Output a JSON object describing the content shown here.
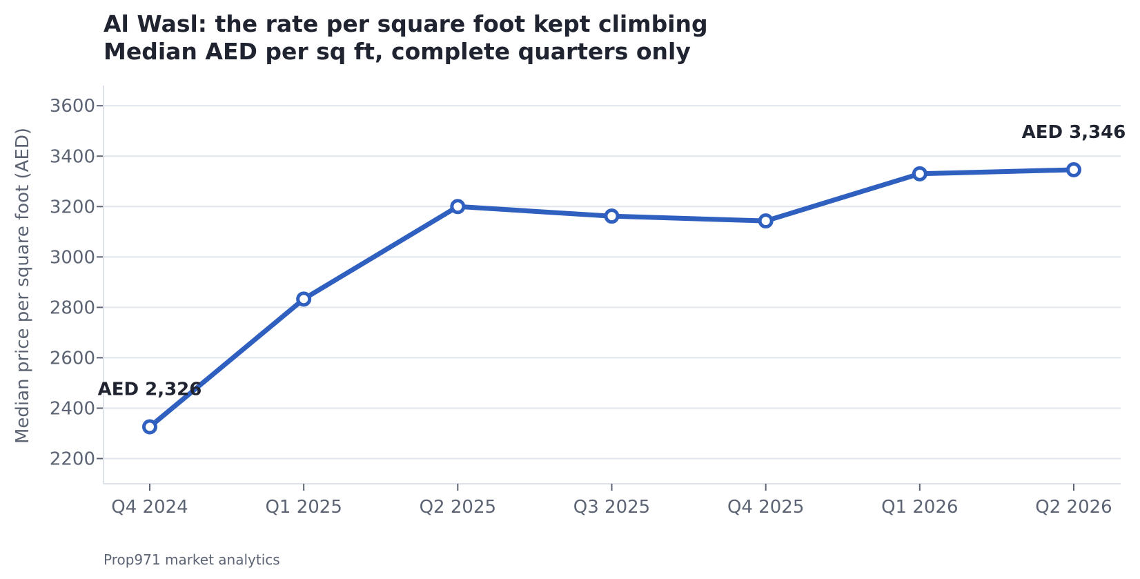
{
  "chart_data": {
    "type": "line",
    "title": "Al Wasl: the rate per square foot kept climbing",
    "subtitle": "Median AED per sq ft, complete quarters only",
    "xlabel": "",
    "ylabel": "Median price per square foot (AED)",
    "categories": [
      "Q4 2024",
      "Q1 2025",
      "Q2 2025",
      "Q3 2025",
      "Q4 2025",
      "Q1 2026",
      "Q2 2026"
    ],
    "series": [
      {
        "values": [
          2326,
          2833,
          3200,
          3162,
          3143,
          3330,
          3346
        ]
      }
    ],
    "ylim": [
      2100,
      3680
    ],
    "yticks": [
      2200,
      2400,
      2600,
      2800,
      3000,
      3200,
      3400,
      3600
    ],
    "annotations": [
      {
        "index": 0,
        "text": "AED 2,326"
      },
      {
        "index": 6,
        "text": "AED 3,346"
      }
    ],
    "grid": "horizontal",
    "line_color": "#2f5fbf",
    "grid_color": "#e1e5ee",
    "axis_color": "#dde1ea",
    "text_color": "#1f2430",
    "muted_text_color": "#5c6473"
  },
  "source": "Prop971 market analytics"
}
